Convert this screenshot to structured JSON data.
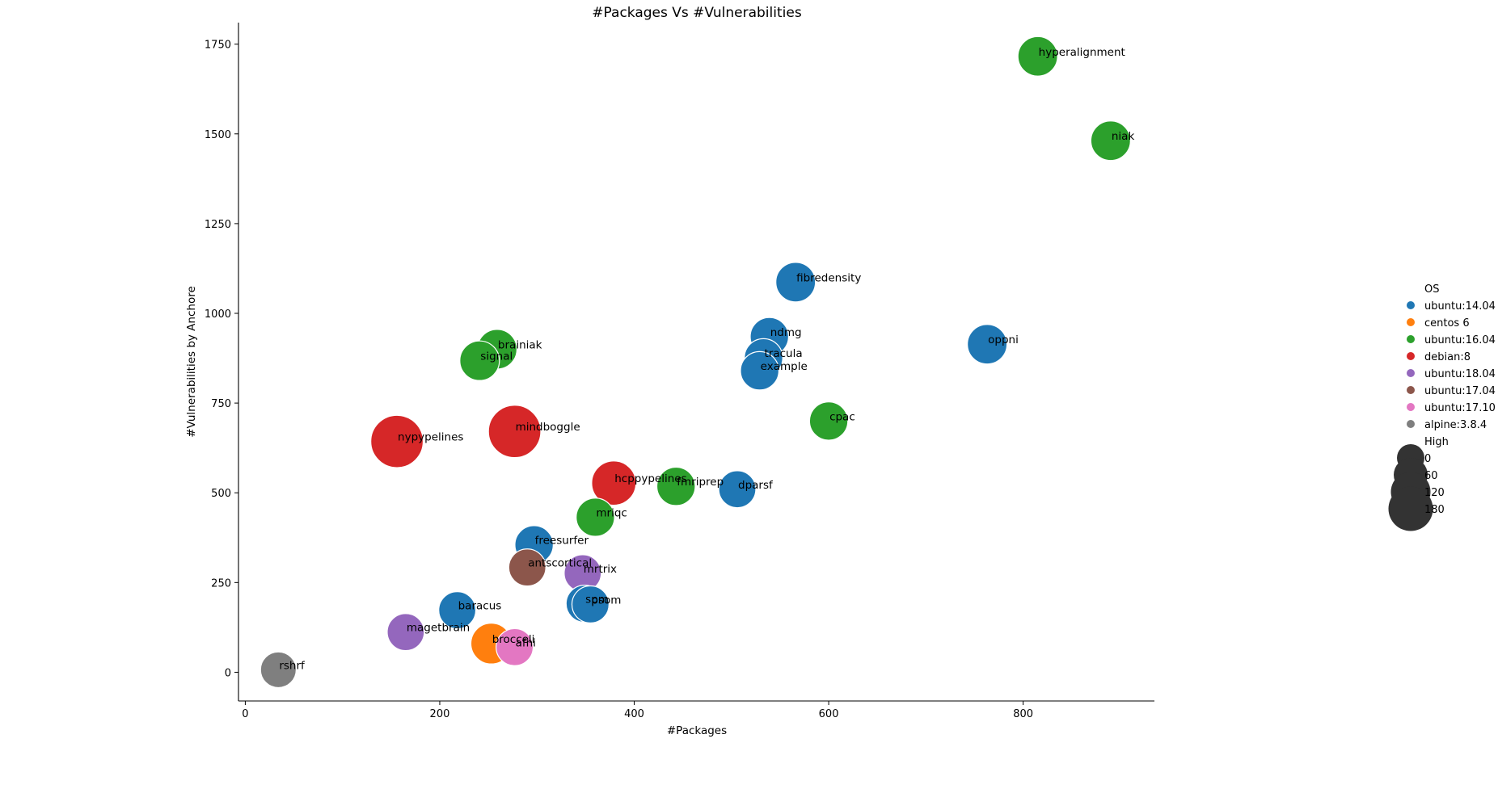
{
  "chart_data": {
    "type": "scatter",
    "title": "#Packages Vs #Vulnerabilities",
    "xlabel": "#Packages",
    "ylabel": "#Vulnerabilities by Anchore",
    "xlim": [
      -7,
      935
    ],
    "ylim": [
      -80,
      1810
    ],
    "xticks": [
      0,
      200,
      400,
      600,
      800
    ],
    "yticks": [
      0,
      250,
      500,
      750,
      1000,
      1250,
      1500,
      1750
    ],
    "grid": false,
    "legend": {
      "position": "right",
      "hue_title": "OS",
      "size_title": "High",
      "size_entries": [
        {
          "label": "0",
          "value": 0
        },
        {
          "label": "60",
          "value": 60
        },
        {
          "label": "120",
          "value": 120
        },
        {
          "label": "180",
          "value": 180
        }
      ]
    },
    "series": [
      {
        "name": "ubuntu:14.04",
        "color": "#1f77b4"
      },
      {
        "name": "centos 6",
        "color": "#ff7f0e"
      },
      {
        "name": "ubuntu:16.04",
        "color": "#2ca02c"
      },
      {
        "name": "debian:8",
        "color": "#d62728"
      },
      {
        "name": "ubuntu:18.04",
        "color": "#9467bd"
      },
      {
        "name": "ubuntu:17.04",
        "color": "#8c564b"
      },
      {
        "name": "ubuntu:17.10",
        "color": "#e377c2"
      },
      {
        "name": "alpine:3.8.4",
        "color": "#7f7f7f"
      }
    ],
    "points": [
      {
        "label": "hyperalignment",
        "x": 815,
        "y": 1716,
        "os": "ubuntu:16.04",
        "high": 40
      },
      {
        "label": "niak",
        "x": 890,
        "y": 1481,
        "os": "ubuntu:16.04",
        "high": 40
      },
      {
        "label": "fibredensity",
        "x": 566,
        "y": 1087,
        "os": "ubuntu:14.04",
        "high": 40
      },
      {
        "label": "ndmg",
        "x": 539,
        "y": 935,
        "os": "ubuntu:14.04",
        "high": 35
      },
      {
        "label": "oppni",
        "x": 763,
        "y": 914,
        "os": "ubuntu:14.04",
        "high": 40
      },
      {
        "label": "tracula",
        "x": 533,
        "y": 876,
        "os": "ubuntu:14.04",
        "high": 35
      },
      {
        "label": "example",
        "x": 529,
        "y": 840,
        "os": "ubuntu:14.04",
        "high": 35
      },
      {
        "label": "brainiak",
        "x": 259,
        "y": 900,
        "os": "ubuntu:16.04",
        "high": 40
      },
      {
        "label": "signal",
        "x": 241,
        "y": 868,
        "os": "ubuntu:16.04",
        "high": 40
      },
      {
        "label": "cpac",
        "x": 600,
        "y": 700,
        "os": "ubuntu:16.04",
        "high": 35
      },
      {
        "label": "mindboggle",
        "x": 277,
        "y": 671,
        "os": "debian:8",
        "high": 100
      },
      {
        "label": "nypypelines",
        "x": 156,
        "y": 643,
        "os": "debian:8",
        "high": 100
      },
      {
        "label": "hcppypelines",
        "x": 379,
        "y": 527,
        "os": "debian:8",
        "high": 60
      },
      {
        "label": "fmriprep",
        "x": 443,
        "y": 518,
        "os": "ubuntu:16.04",
        "high": 35
      },
      {
        "label": "dparsf",
        "x": 506,
        "y": 510,
        "os": "ubuntu:14.04",
        "high": 30
      },
      {
        "label": "mriqc",
        "x": 360,
        "y": 432,
        "os": "ubuntu:16.04",
        "high": 35
      },
      {
        "label": "freesurfer",
        "x": 297,
        "y": 355,
        "os": "ubuntu:14.04",
        "high": 35
      },
      {
        "label": "antscortical",
        "x": 290,
        "y": 292,
        "os": "ubuntu:17.04",
        "high": 30
      },
      {
        "label": "mrtrix",
        "x": 347,
        "y": 276,
        "os": "ubuntu:18.04",
        "high": 30
      },
      {
        "label": "spm",
        "x": 349,
        "y": 191,
        "os": "ubuntu:14.04",
        "high": 30
      },
      {
        "label": "psom",
        "x": 355,
        "y": 189,
        "os": "ubuntu:14.04",
        "high": 30
      },
      {
        "label": "baracus",
        "x": 218,
        "y": 173,
        "os": "ubuntu:14.04",
        "high": 30
      },
      {
        "label": "magetbrain",
        "x": 165,
        "y": 112,
        "os": "ubuntu:18.04",
        "high": 30
      },
      {
        "label": "brocceli",
        "x": 253,
        "y": 80,
        "os": "centos 6",
        "high": 45
      },
      {
        "label": "afni",
        "x": 277,
        "y": 70,
        "os": "ubuntu:17.10",
        "high": 30
      },
      {
        "label": "rshrf",
        "x": 34,
        "y": 7,
        "os": "alpine:3.8.4",
        "high": 25
      }
    ]
  }
}
